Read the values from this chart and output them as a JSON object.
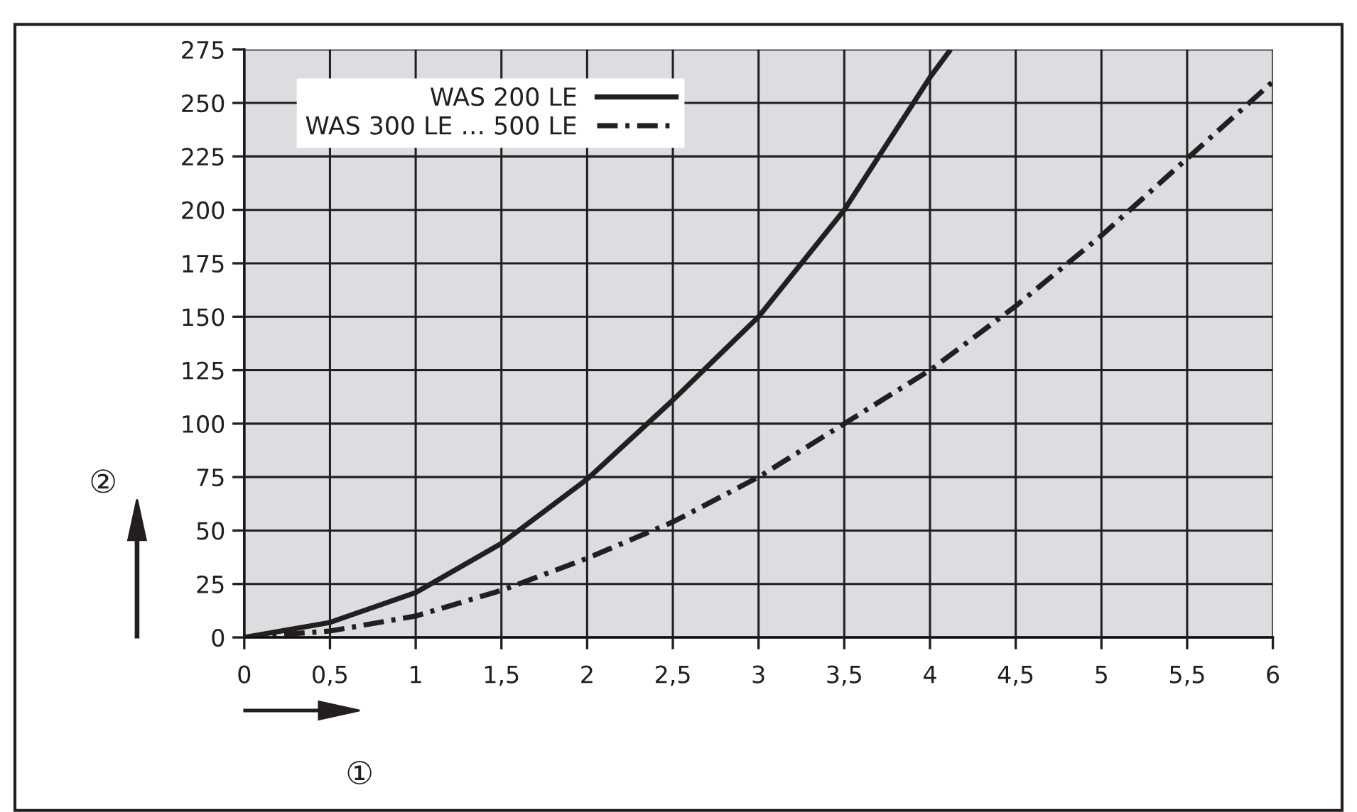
{
  "chart_data": {
    "type": "line",
    "xlabel": "①",
    "ylabel": "②",
    "xlim": [
      0,
      6
    ],
    "ylim": [
      0,
      275
    ],
    "xticks": [
      0,
      {
        "value": 0.5,
        "label": "0,5"
      },
      1,
      {
        "value": 1.5,
        "label": "1,5"
      },
      2,
      {
        "value": 2.5,
        "label": "2,5"
      },
      3,
      {
        "value": 3.5,
        "label": "3,5"
      },
      4,
      {
        "value": 4.5,
        "label": "4,5"
      },
      5,
      {
        "value": 5.5,
        "label": "5,5"
      },
      6
    ],
    "yticks": [
      0,
      25,
      50,
      75,
      100,
      125,
      150,
      175,
      200,
      225,
      250,
      275
    ],
    "grid": true,
    "legend": "top left",
    "marker": "none",
    "series": [
      {
        "name": "WAS 200 LE",
        "color": "#231f20",
        "line_style": "solid",
        "x": [
          0,
          0.5,
          1,
          1.5,
          2,
          2.5,
          3,
          3.5,
          4,
          4.12
        ],
        "values": [
          0,
          7,
          21,
          44,
          74,
          111,
          150,
          200,
          262,
          275
        ]
      },
      {
        "name": "WAS 300 LE … 500 LE",
        "color": "#231f20",
        "line_style": "dashdot",
        "x": [
          0,
          0.5,
          1,
          1.5,
          2,
          2.5,
          3,
          3.5,
          4,
          4.5,
          5,
          5.5,
          6
        ],
        "values": [
          0,
          3,
          10,
          22,
          37,
          54,
          75,
          100,
          125,
          155,
          188,
          224,
          260
        ]
      }
    ]
  }
}
